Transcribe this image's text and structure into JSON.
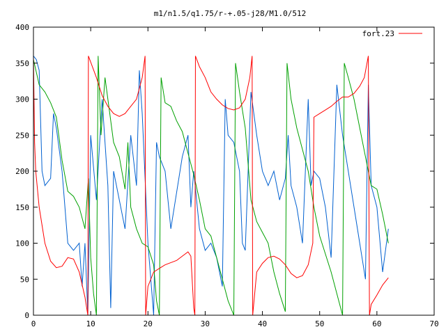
{
  "chart_data": {
    "type": "line",
    "title": "m1/n1.5/q1.75/r-+.05-j28/M1.0/512",
    "xlabel": "",
    "ylabel": "",
    "xlim": [
      0,
      70
    ],
    "ylim": [
      0,
      400
    ],
    "x_ticks": [
      "0",
      "10",
      "20",
      "30",
      "40",
      "50",
      "60",
      "70"
    ],
    "y_ticks": [
      "0",
      "50",
      "100",
      "150",
      "200",
      "250",
      "300",
      "350",
      "400"
    ],
    "grid": false,
    "legend_position": "top-right",
    "series": [
      {
        "name": "fort.23",
        "color": "#ff0000",
        "points": [
          [
            0,
            360
          ],
          [
            0.2,
            240
          ],
          [
            0.4,
            200
          ],
          [
            1,
            150
          ],
          [
            2,
            100
          ],
          [
            3,
            75
          ],
          [
            4,
            66
          ],
          [
            5,
            68
          ],
          [
            6,
            80
          ],
          [
            7,
            78
          ],
          [
            8,
            60
          ],
          [
            9,
            25
          ],
          [
            9.5,
            0
          ],
          [
            9.6,
            360
          ],
          [
            11,
            330
          ],
          [
            12,
            305
          ],
          [
            13,
            290
          ],
          [
            14,
            280
          ],
          [
            15,
            276
          ],
          [
            16,
            280
          ],
          [
            17,
            290
          ],
          [
            18,
            300
          ],
          [
            19,
            330
          ],
          [
            19.5,
            360
          ],
          [
            19.6,
            0
          ],
          [
            20,
            40
          ],
          [
            21,
            60
          ],
          [
            22,
            65
          ],
          [
            23,
            70
          ],
          [
            24,
            73
          ],
          [
            25,
            76
          ],
          [
            26,
            82
          ],
          [
            27,
            88
          ],
          [
            27.5,
            82
          ],
          [
            28,
            10
          ],
          [
            28.2,
            0
          ],
          [
            28.3,
            360
          ],
          [
            29,
            345
          ],
          [
            30,
            330
          ],
          [
            31,
            310
          ],
          [
            32,
            300
          ],
          [
            33,
            292
          ],
          [
            34,
            287
          ],
          [
            35,
            285
          ],
          [
            36,
            288
          ],
          [
            37,
            300
          ],
          [
            37.8,
            330
          ],
          [
            38.2,
            360
          ],
          [
            38.3,
            0
          ],
          [
            39,
            60
          ],
          [
            40,
            72
          ],
          [
            41,
            80
          ],
          [
            42,
            82
          ],
          [
            43,
            78
          ],
          [
            44,
            70
          ],
          [
            45,
            58
          ],
          [
            46,
            52
          ],
          [
            47,
            55
          ],
          [
            48,
            70
          ],
          [
            48.8,
            100
          ],
          [
            49,
            275
          ],
          [
            50,
            280
          ],
          [
            51,
            285
          ],
          [
            52,
            290
          ],
          [
            53,
            297
          ],
          [
            54,
            303
          ],
          [
            55,
            303
          ],
          [
            56,
            308
          ],
          [
            57,
            318
          ],
          [
            57.8,
            330
          ],
          [
            58.5,
            360
          ],
          [
            58.7,
            0
          ],
          [
            59,
            15
          ],
          [
            60,
            28
          ],
          [
            61,
            42
          ],
          [
            62,
            52
          ]
        ]
      },
      {
        "name": "",
        "color": "#00a000",
        "points": [
          [
            0,
            355
          ],
          [
            1,
            320
          ],
          [
            2,
            310
          ],
          [
            3,
            295
          ],
          [
            4,
            275
          ],
          [
            5,
            215
          ],
          [
            6,
            172
          ],
          [
            7,
            165
          ],
          [
            8,
            150
          ],
          [
            9,
            120
          ],
          [
            9.6,
            190
          ],
          [
            10,
            80
          ],
          [
            10.5,
            30
          ],
          [
            11,
            0
          ],
          [
            11.3,
            360
          ],
          [
            11.8,
            250
          ],
          [
            12.5,
            330
          ],
          [
            13,
            300
          ],
          [
            14,
            240
          ],
          [
            15,
            220
          ],
          [
            16,
            175
          ],
          [
            16.5,
            240
          ],
          [
            17,
            150
          ],
          [
            18,
            120
          ],
          [
            19,
            100
          ],
          [
            20,
            95
          ],
          [
            21,
            70
          ],
          [
            21.5,
            20
          ],
          [
            22,
            0
          ],
          [
            22.3,
            330
          ],
          [
            23,
            295
          ],
          [
            24,
            290
          ],
          [
            25,
            270
          ],
          [
            26,
            255
          ],
          [
            27,
            225
          ],
          [
            28,
            195
          ],
          [
            29,
            160
          ],
          [
            30,
            120
          ],
          [
            31,
            110
          ],
          [
            32,
            80
          ],
          [
            33,
            50
          ],
          [
            34,
            20
          ],
          [
            35,
            0
          ],
          [
            35.3,
            350
          ],
          [
            36,
            310
          ],
          [
            37,
            260
          ],
          [
            38,
            160
          ],
          [
            39,
            130
          ],
          [
            40,
            115
          ],
          [
            41,
            100
          ],
          [
            42,
            60
          ],
          [
            43,
            30
          ],
          [
            44,
            5
          ],
          [
            44.3,
            350
          ],
          [
            45,
            300
          ],
          [
            46,
            260
          ],
          [
            47,
            230
          ],
          [
            48,
            200
          ],
          [
            49,
            150
          ],
          [
            50,
            110
          ],
          [
            51,
            85
          ],
          [
            52,
            60
          ],
          [
            53,
            30
          ],
          [
            54,
            0
          ],
          [
            54.3,
            350
          ],
          [
            55,
            330
          ],
          [
            56,
            300
          ],
          [
            57,
            260
          ],
          [
            58,
            220
          ],
          [
            59,
            180
          ],
          [
            60,
            175
          ],
          [
            61,
            140
          ],
          [
            62,
            100
          ]
        ]
      },
      {
        "name": "",
        "color": "#0060d0",
        "points": [
          [
            0,
            360
          ],
          [
            0.5,
            355
          ],
          [
            1,
            340
          ],
          [
            1.5,
            200
          ],
          [
            2,
            180
          ],
          [
            3,
            190
          ],
          [
            3.5,
            280
          ],
          [
            4,
            260
          ],
          [
            5,
            200
          ],
          [
            6,
            100
          ],
          [
            7,
            90
          ],
          [
            8,
            100
          ],
          [
            8.5,
            40
          ],
          [
            9,
            100
          ],
          [
            9.5,
            0
          ],
          [
            10,
            250
          ],
          [
            11,
            160
          ],
          [
            12,
            300
          ],
          [
            13,
            180
          ],
          [
            13.5,
            10
          ],
          [
            14,
            200
          ],
          [
            15,
            160
          ],
          [
            16,
            120
          ],
          [
            17,
            250
          ],
          [
            18,
            180
          ],
          [
            18.5,
            340
          ],
          [
            19,
            280
          ],
          [
            20,
            100
          ],
          [
            21,
            0
          ],
          [
            21.5,
            240
          ],
          [
            22,
            220
          ],
          [
            23,
            200
          ],
          [
            24,
            120
          ],
          [
            25,
            170
          ],
          [
            26,
            220
          ],
          [
            27,
            250
          ],
          [
            27.5,
            150
          ],
          [
            28,
            200
          ],
          [
            29,
            120
          ],
          [
            30,
            90
          ],
          [
            31,
            100
          ],
          [
            32,
            80
          ],
          [
            33,
            40
          ],
          [
            33.5,
            300
          ],
          [
            34,
            250
          ],
          [
            35,
            240
          ],
          [
            36,
            200
          ],
          [
            36.5,
            100
          ],
          [
            37,
            90
          ],
          [
            38,
            310
          ],
          [
            39,
            250
          ],
          [
            40,
            200
          ],
          [
            41,
            180
          ],
          [
            42,
            200
          ],
          [
            43,
            160
          ],
          [
            44,
            190
          ],
          [
            44.5,
            250
          ],
          [
            45,
            180
          ],
          [
            46,
            150
          ],
          [
            47,
            100
          ],
          [
            48,
            300
          ],
          [
            48.5,
            180
          ],
          [
            49,
            200
          ],
          [
            50,
            190
          ],
          [
            51,
            150
          ],
          [
            52,
            80
          ],
          [
            53,
            320
          ],
          [
            54,
            250
          ],
          [
            55,
            200
          ],
          [
            56,
            150
          ],
          [
            57,
            100
          ],
          [
            58,
            50
          ],
          [
            58.5,
            320
          ],
          [
            59,
            180
          ],
          [
            60,
            150
          ],
          [
            61,
            60
          ],
          [
            62,
            120
          ]
        ]
      }
    ]
  }
}
